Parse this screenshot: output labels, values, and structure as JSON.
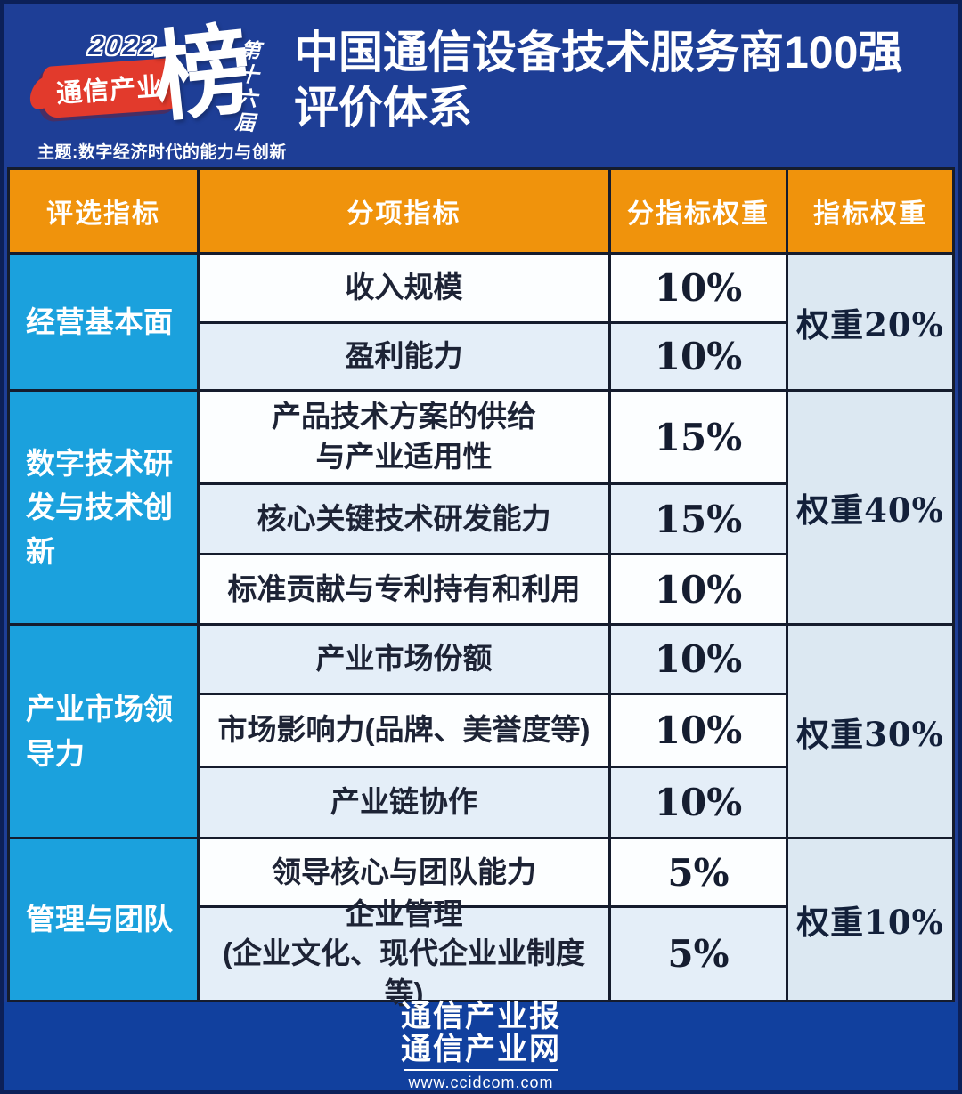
{
  "header": {
    "logo": {
      "year": "2022",
      "brand": "通信产业",
      "bang": "榜",
      "edition": "第十六届",
      "theme": "主题:数字经济时代的能力与创新"
    },
    "title_line1": "中国通信设备技术服务商100强",
    "title_line2": "评价体系"
  },
  "table": {
    "columns": [
      "评选指标",
      "分项指标",
      "分指标权重",
      "指标权重"
    ],
    "groups": [
      {
        "category": "经营基本面",
        "weight": "权重20%",
        "rows": [
          {
            "label": "收入规模",
            "weight": "10%"
          },
          {
            "label": "盈利能力",
            "weight": "10%"
          }
        ]
      },
      {
        "category": "数字技术研发与技术创新",
        "weight": "权重40%",
        "rows": [
          {
            "label": "产品技术方案的供给\n与产业适用性",
            "weight": "15%"
          },
          {
            "label": "核心关键技术研发能力",
            "weight": "15%"
          },
          {
            "label": "标准贡献与专利持有和利用",
            "weight": "10%"
          }
        ]
      },
      {
        "category": "产业市场领导力",
        "weight": "权重30%",
        "rows": [
          {
            "label": "产业市场份额",
            "weight": "10%"
          },
          {
            "label": "市场影响力(品牌、美誉度等)",
            "weight": "10%"
          },
          {
            "label": "产业链协作",
            "weight": "10%"
          }
        ]
      },
      {
        "category": "管理与团队",
        "weight": "权重10%",
        "rows": [
          {
            "label": "领导核心与团队能力",
            "weight": "5%"
          },
          {
            "label": "企业管理\n(企业文化、现代企业业制度等)",
            "weight": "5%"
          }
        ]
      }
    ]
  },
  "footer": {
    "line1": "通信产业报",
    "line2": "通信产业网",
    "url": "www.ccidcom.com"
  },
  "colors": {
    "canvas_blue": "#1e3e96",
    "footer_blue": "#11409e",
    "header_orange": "#f0930c",
    "category_blue": "#1ba1dd",
    "row_alt": "#e4eef8",
    "weight_cell": "#dce8f2",
    "grid_line": "#151c2d",
    "logo_red": "#e23a2c",
    "text_dark": "#1d2335"
  }
}
